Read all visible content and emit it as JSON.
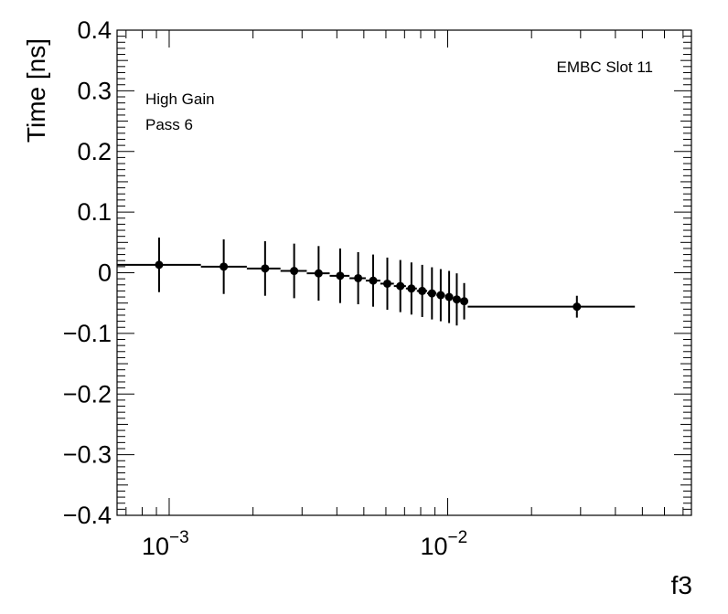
{
  "chart_data": {
    "type": "scatter",
    "xlabel": "f3",
    "ylabel": "Time [ns]",
    "xscale": "log",
    "xlim": [
      0.00065,
      0.075
    ],
    "ylim": [
      -0.4,
      0.4
    ],
    "grid": false,
    "yticks": [
      -0.4,
      -0.3,
      -0.2,
      -0.1,
      0,
      0.1,
      0.2,
      0.3,
      0.4
    ],
    "ytick_labels": [
      "−0.4",
      "−0.3",
      "−0.2",
      "−0.1",
      "0",
      "0.1",
      "0.2",
      "0.3",
      "0.4"
    ],
    "xticks_major": [
      0.001,
      0.01
    ],
    "xtick_bases": [
      "10",
      "10"
    ],
    "xtick_exponents": [
      "−3",
      "−2"
    ],
    "annotations": [
      "High Gain",
      "Pass 6",
      "EMBC Slot 11"
    ],
    "points": [
      {
        "x": 0.00092,
        "y": 0.013,
        "yerr": 0.045
      },
      {
        "x": 0.00157,
        "y": 0.01,
        "yerr": 0.045
      },
      {
        "x": 0.00221,
        "y": 0.007,
        "yerr": 0.045
      },
      {
        "x": 0.00281,
        "y": 0.003,
        "yerr": 0.045
      },
      {
        "x": 0.00344,
        "y": -0.001,
        "yerr": 0.045
      },
      {
        "x": 0.00411,
        "y": -0.005,
        "yerr": 0.045
      },
      {
        "x": 0.00477,
        "y": -0.009,
        "yerr": 0.043
      },
      {
        "x": 0.0054,
        "y": -0.013,
        "yerr": 0.043
      },
      {
        "x": 0.00607,
        "y": -0.018,
        "yerr": 0.043
      },
      {
        "x": 0.00676,
        "y": -0.022,
        "yerr": 0.043
      },
      {
        "x": 0.00741,
        "y": -0.026,
        "yerr": 0.043
      },
      {
        "x": 0.0081,
        "y": -0.03,
        "yerr": 0.043
      },
      {
        "x": 0.00878,
        "y": -0.034,
        "yerr": 0.043
      },
      {
        "x": 0.00944,
        "y": -0.037,
        "yerr": 0.043
      },
      {
        "x": 0.01012,
        "y": -0.04,
        "yerr": 0.043
      },
      {
        "x": 0.01078,
        "y": -0.044,
        "yerr": 0.043
      },
      {
        "x": 0.01146,
        "y": -0.047,
        "yerr": 0.03
      },
      {
        "x": 0.0291,
        "y": -0.056,
        "yerr": 0.018
      }
    ],
    "step_function": [
      {
        "x0": 0.00065,
        "x1": 0.0013,
        "y": 0.013
      },
      {
        "x0": 0.0013,
        "x1": 0.0019,
        "y": 0.01
      },
      {
        "x0": 0.0019,
        "x1": 0.00251,
        "y": 0.007
      },
      {
        "x0": 0.00251,
        "x1": 0.00312,
        "y": 0.003
      },
      {
        "x0": 0.00312,
        "x1": 0.00377,
        "y": -0.001
      },
      {
        "x0": 0.00377,
        "x1": 0.00444,
        "y": -0.005
      },
      {
        "x0": 0.00444,
        "x1": 0.00508,
        "y": -0.009
      },
      {
        "x0": 0.00508,
        "x1": 0.00573,
        "y": -0.013
      },
      {
        "x0": 0.00573,
        "x1": 0.00641,
        "y": -0.018
      },
      {
        "x0": 0.00641,
        "x1": 0.00708,
        "y": -0.022
      },
      {
        "x0": 0.00708,
        "x1": 0.00775,
        "y": -0.026
      },
      {
        "x0": 0.00775,
        "x1": 0.00844,
        "y": -0.03
      },
      {
        "x0": 0.00844,
        "x1": 0.00911,
        "y": -0.034
      },
      {
        "x0": 0.00911,
        "x1": 0.00978,
        "y": -0.037
      },
      {
        "x0": 0.00978,
        "x1": 0.01045,
        "y": -0.04
      },
      {
        "x0": 0.01045,
        "x1": 0.01112,
        "y": -0.044
      },
      {
        "x0": 0.01112,
        "x1": 0.0118,
        "y": -0.047
      },
      {
        "x0": 0.0118,
        "x1": 0.047,
        "y": -0.056
      }
    ]
  }
}
